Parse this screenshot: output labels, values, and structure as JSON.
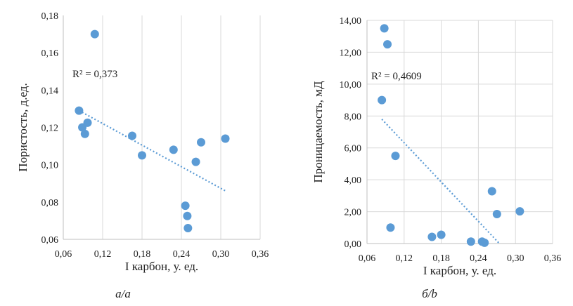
{
  "chart_data": [
    {
      "type": "scatter",
      "xlabel": "I карбон, у. ед.",
      "ylabel": "Пористость, д.ед.",
      "xlim": [
        0.06,
        0.36
      ],
      "ylim": [
        0.06,
        0.18
      ],
      "x_ticks": [
        "0,06",
        "0,12",
        "0,18",
        "0,24",
        "0,30",
        "0,36"
      ],
      "y_ticks": [
        "0,06",
        "0,08",
        "0,10",
        "0,12",
        "0,14",
        "0,16",
        "0,18"
      ],
      "grid": "vertical",
      "r2_label": "R² = 0,373",
      "caption": "а/a",
      "points": [
        {
          "x": 0.108,
          "y": 0.17
        },
        {
          "x": 0.084,
          "y": 0.129
        },
        {
          "x": 0.089,
          "y": 0.12
        },
        {
          "x": 0.093,
          "y": 0.1165
        },
        {
          "x": 0.097,
          "y": 0.1225
        },
        {
          "x": 0.165,
          "y": 0.1155
        },
        {
          "x": 0.18,
          "y": 0.105
        },
        {
          "x": 0.228,
          "y": 0.108
        },
        {
          "x": 0.246,
          "y": 0.078
        },
        {
          "x": 0.249,
          "y": 0.0725
        },
        {
          "x": 0.25,
          "y": 0.066
        },
        {
          "x": 0.262,
          "y": 0.1015
        },
        {
          "x": 0.27,
          "y": 0.112
        },
        {
          "x": 0.307,
          "y": 0.114
        }
      ],
      "trendline": {
        "x": [
          0.084,
          0.307
        ],
        "y": [
          0.129,
          0.086
        ]
      }
    },
    {
      "type": "scatter",
      "xlabel": "I карбон, у. ед.",
      "ylabel": "Проницаемость, мД",
      "xlim": [
        0.06,
        0.36
      ],
      "ylim": [
        0.0,
        14.0
      ],
      "x_ticks": [
        "0,06",
        "0,12",
        "0,18",
        "0,24",
        "0,30",
        "0,36"
      ],
      "y_ticks": [
        "0,00",
        "2,00",
        "4,00",
        "6,00",
        "8,00",
        "10,00",
        "12,00",
        "14,00"
      ],
      "grid": "both",
      "r2_label": "R² = 0,4609",
      "caption": "б/b",
      "points": [
        {
          "x": 0.088,
          "y": 13.5
        },
        {
          "x": 0.093,
          "y": 12.5
        },
        {
          "x": 0.084,
          "y": 9.0
        },
        {
          "x": 0.106,
          "y": 5.5
        },
        {
          "x": 0.098,
          "y": 1.0
        },
        {
          "x": 0.165,
          "y": 0.42
        },
        {
          "x": 0.18,
          "y": 0.55
        },
        {
          "x": 0.228,
          "y": 0.12
        },
        {
          "x": 0.246,
          "y": 0.12
        },
        {
          "x": 0.25,
          "y": 0.05
        },
        {
          "x": 0.262,
          "y": 3.28
        },
        {
          "x": 0.27,
          "y": 1.85
        },
        {
          "x": 0.307,
          "y": 2.02
        }
      ],
      "trendline": {
        "x": [
          0.084,
          0.274
        ],
        "y": [
          7.8,
          0.0
        ]
      }
    }
  ]
}
